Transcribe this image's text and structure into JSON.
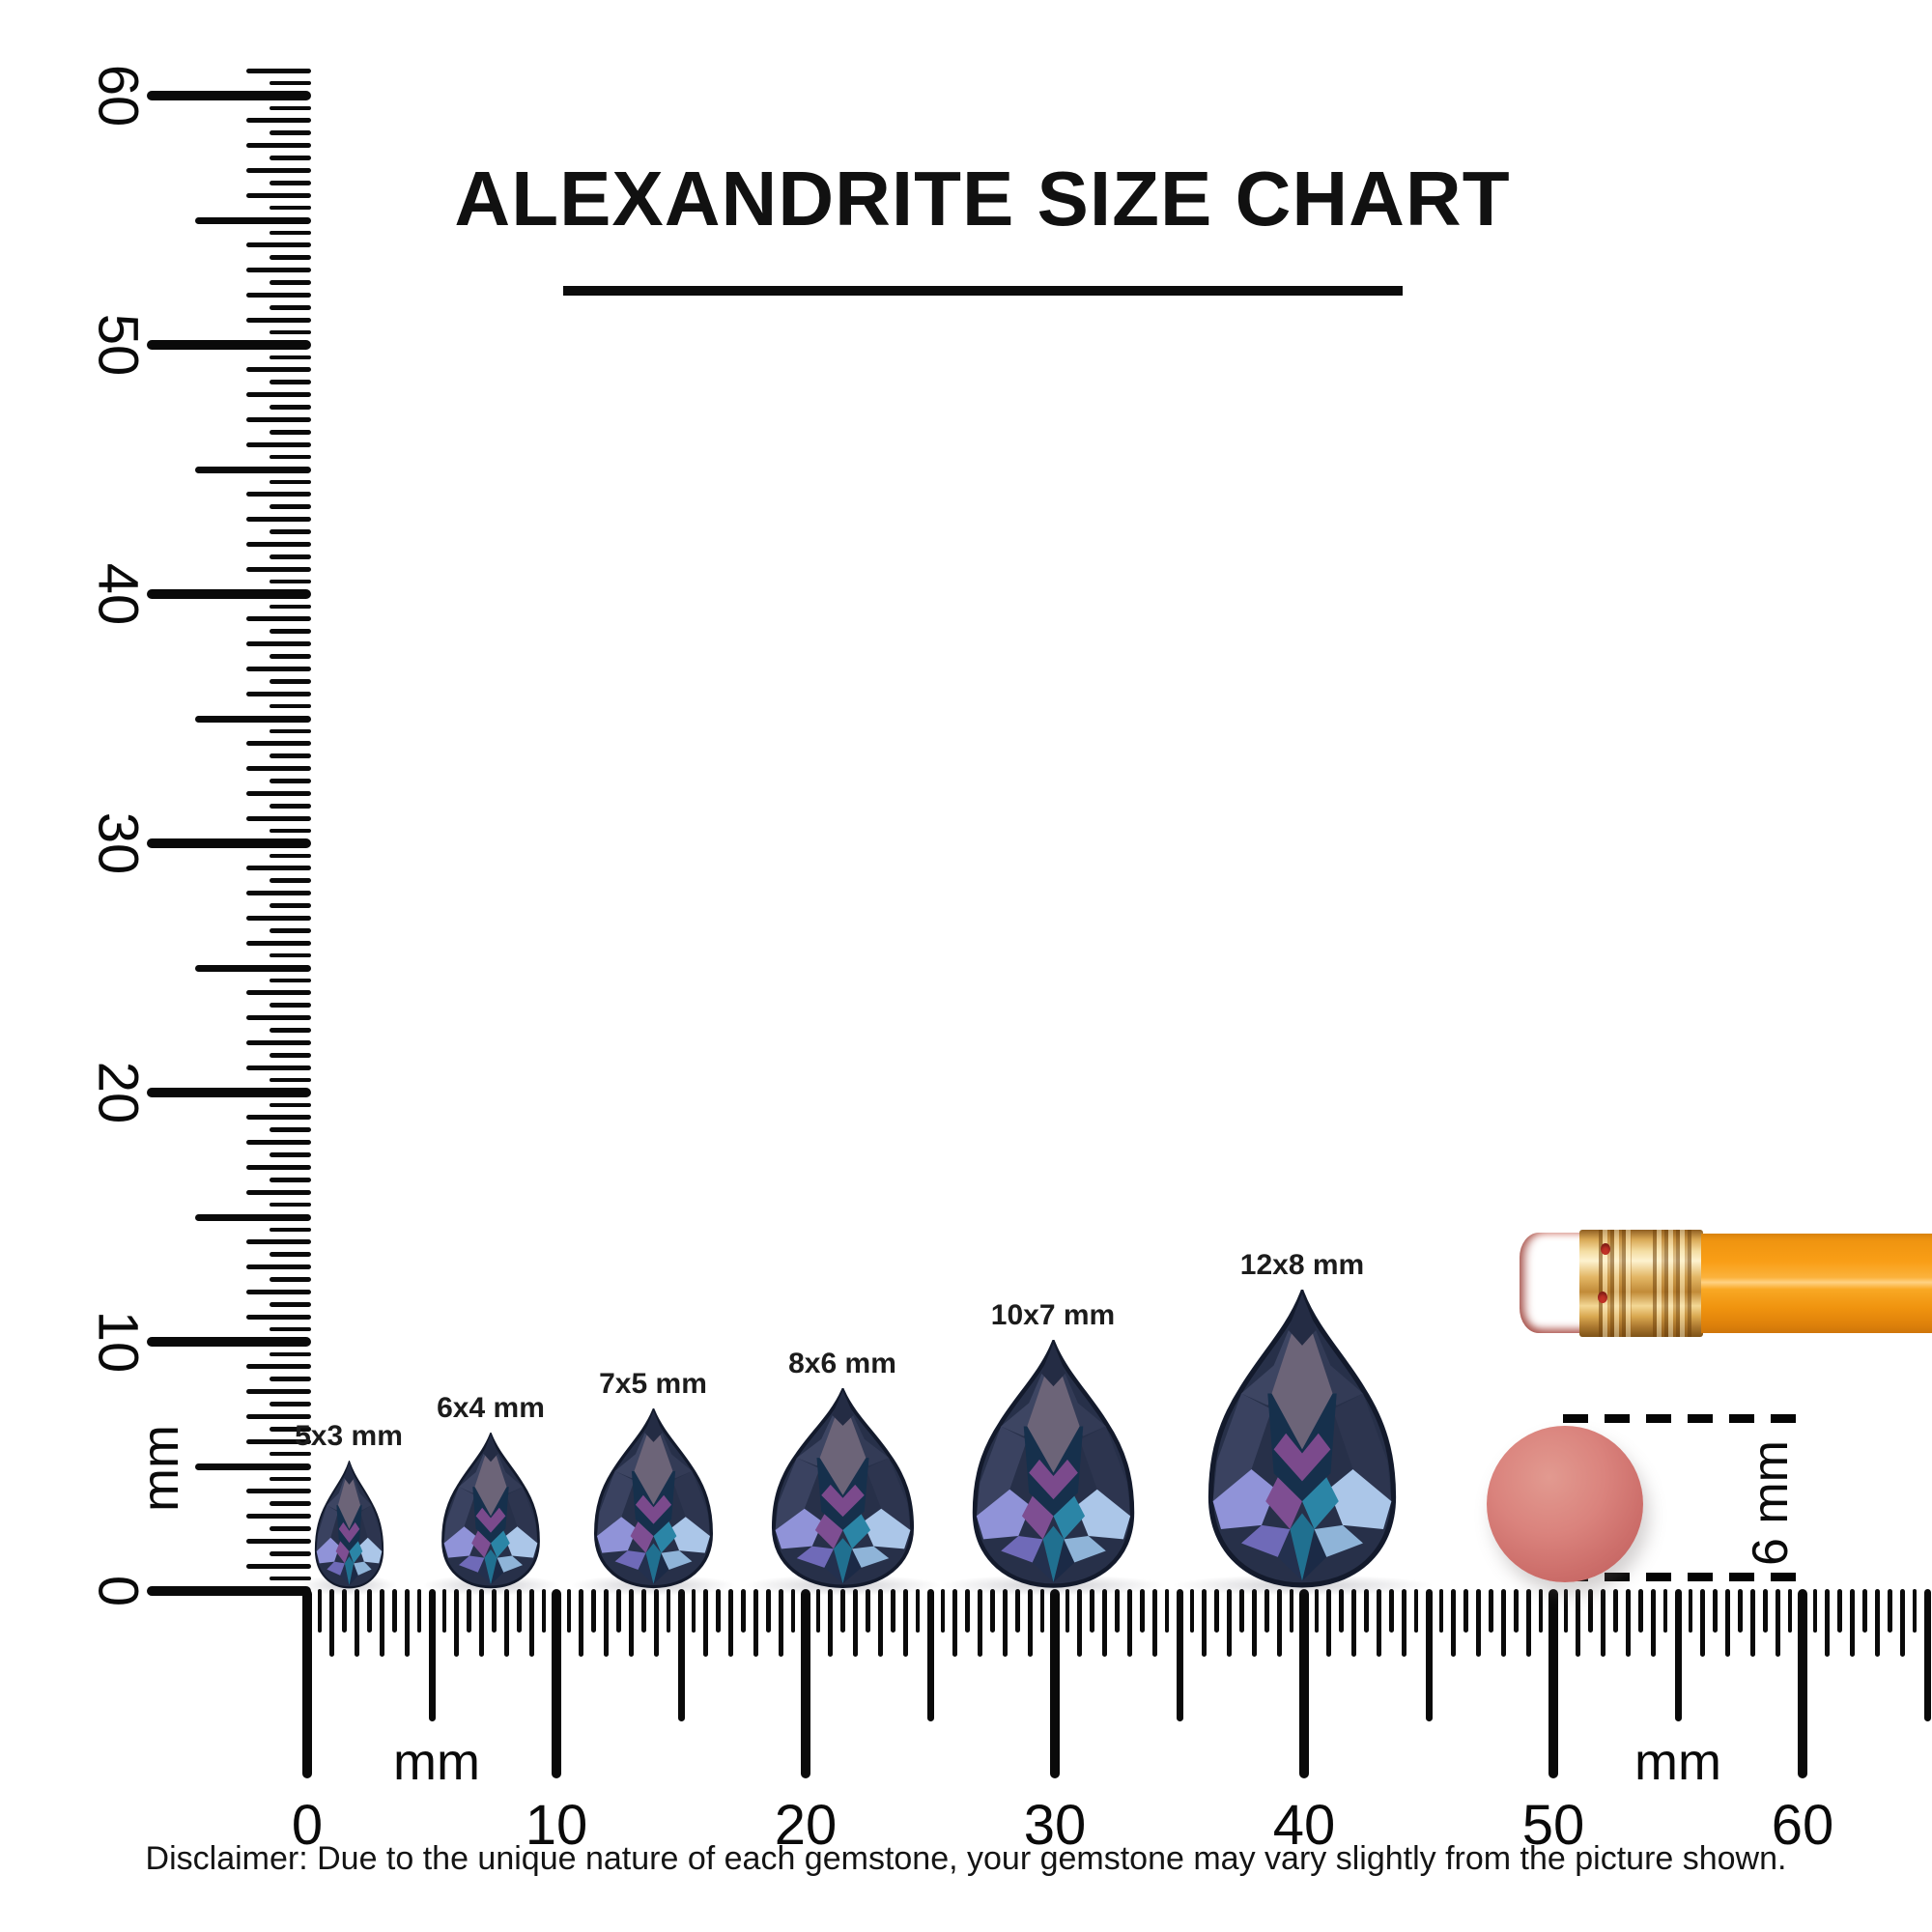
{
  "title": {
    "text": "ALEXANDRITE SIZE CHART"
  },
  "vertical_ruler": {
    "unit": "mm",
    "numbers": [
      "60",
      "50",
      "40",
      "30",
      "20",
      "10",
      "0"
    ]
  },
  "horizontal_ruler": {
    "unit_left": "mm",
    "unit_right": "mm",
    "numbers": [
      "0",
      "10",
      "20",
      "30",
      "40",
      "50",
      "60"
    ]
  },
  "gems": [
    {
      "label": "5x3 mm",
      "size_mm": "5x3"
    },
    {
      "label": "6x4 mm",
      "size_mm": "6x4"
    },
    {
      "label": "7x5 mm",
      "size_mm": "7x5"
    },
    {
      "label": "8x6 mm",
      "size_mm": "8x6"
    },
    {
      "label": "10x7 mm",
      "size_mm": "10x7"
    },
    {
      "label": "12x8 mm",
      "size_mm": "12x8"
    }
  ],
  "reference_objects": {
    "eraser_disc_label": "6 mm"
  },
  "disclaimer": "Disclaimer: Due to the unique nature of each gemstone, your gemstone may vary slightly from the picture shown.",
  "colors": {
    "ink": "#0a0a0a",
    "gem_body": "#273049",
    "gem_table": "#6c6478",
    "gem_flash_periwinkle": "#9093d8",
    "gem_flash_blue": "#abc6e8",
    "gem_flash_teal": "#2b85a6",
    "gem_flash_magenta": "#7e4e92",
    "disc": "#cf6e6b",
    "pencil_body": "#f89d15",
    "pencil_ferrule": "#d9a855",
    "pencil_eraser": "#db867d"
  }
}
